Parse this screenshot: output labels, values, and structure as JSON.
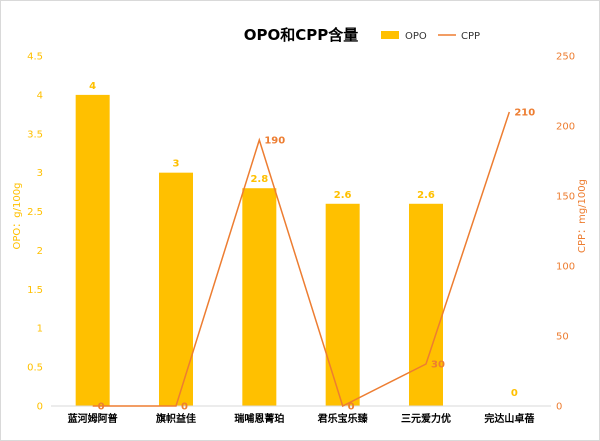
{
  "chart_data": {
    "type": "bar",
    "title": "OPO和CPP含量",
    "categories": [
      "蓝河姆阿普",
      "旗帜益佳",
      "瑞哺恩菁珀",
      "君乐宝乐臻",
      "三元爱力优",
      "完达山卓蓓"
    ],
    "series": [
      {
        "name": "OPO",
        "type": "bar",
        "axis": "left",
        "values": [
          4,
          3,
          2.8,
          2.6,
          2.6,
          0
        ],
        "labels": [
          "4",
          "3",
          "2.8",
          "2.6",
          "2.6",
          "0"
        ]
      },
      {
        "name": "CPP",
        "type": "line",
        "axis": "right",
        "values": [
          0,
          0,
          190,
          0,
          30,
          210
        ],
        "labels": [
          "0",
          "0",
          "190",
          "0",
          "30",
          "210"
        ]
      }
    ],
    "y_left": {
      "label": "OPO：g/100g",
      "min": 0,
      "max": 4.5,
      "ticks": [
        "0",
        "0.5",
        "1",
        "1.5",
        "2",
        "2.5",
        "3",
        "3.5",
        "4",
        "4.5"
      ]
    },
    "y_right": {
      "label": "CPP：mg/100g",
      "min": 0,
      "max": 250,
      "ticks": [
        "0",
        "50",
        "100",
        "150",
        "200",
        "250"
      ]
    },
    "legend_position": "top-right",
    "grid": false,
    "colors": {
      "bar": "#ffc000",
      "line": "#ed7d31",
      "left_axis": "#ffc000",
      "right_axis": "#ed7d31",
      "category_text": "#000000",
      "title": "#000000"
    }
  }
}
